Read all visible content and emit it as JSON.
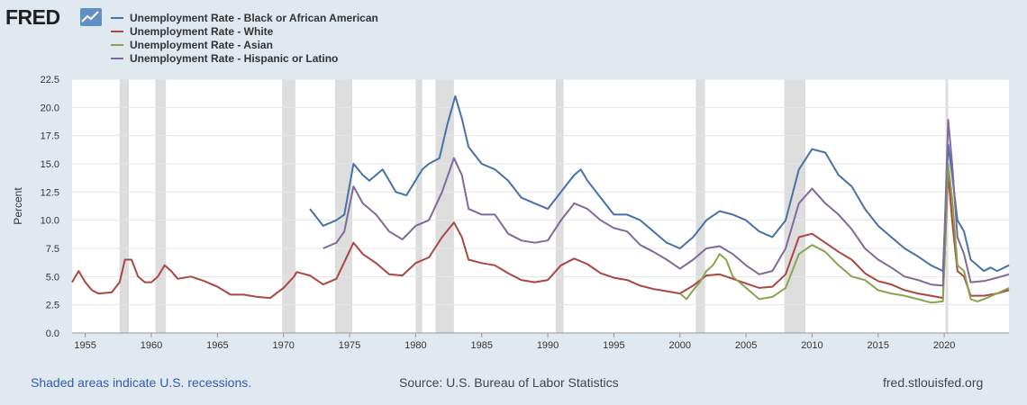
{
  "header": {
    "logo_text": "FRED",
    "logo_icon": "line-chart-icon"
  },
  "footer": {
    "recessions_note": "Shaded areas indicate U.S. recessions.",
    "source": "Source: U.S. Bureau of Labor Statistics",
    "site": "fred.stlouisfed.org"
  },
  "colors": {
    "background": "#e1e9f0",
    "plot_bg": "#ffffff",
    "recession": "#dddddd",
    "black": "#4572a7",
    "white": "#aa4643",
    "asian": "#89a54e",
    "hispanic": "#80699b"
  },
  "chart_data": {
    "type": "line",
    "xlabel": "",
    "ylabel": "Percent",
    "xlim": [
      1954.0,
      2024.9
    ],
    "ylim": [
      0,
      22.5
    ],
    "yticks": [
      "0.0",
      "2.5",
      "5.0",
      "7.5",
      "10.0",
      "12.5",
      "15.0",
      "17.5",
      "20.0",
      "22.5"
    ],
    "xticks": [
      "1955",
      "1960",
      "1965",
      "1970",
      "1975",
      "1980",
      "1985",
      "1990",
      "1995",
      "2000",
      "2005",
      "2010",
      "2015",
      "2020"
    ],
    "recessions": [
      [
        1957.6,
        1958.3
      ],
      [
        1960.3,
        1961.1
      ],
      [
        1969.9,
        1970.9
      ],
      [
        1973.9,
        1975.2
      ],
      [
        1980.0,
        1980.5
      ],
      [
        1981.5,
        1982.9
      ],
      [
        1990.6,
        1991.2
      ],
      [
        2001.2,
        2001.9
      ],
      [
        2007.9,
        2009.5
      ],
      [
        2020.1,
        2020.3
      ]
    ],
    "series": [
      {
        "name": "Unemployment Rate - Black or African American",
        "color": "#4572a7",
        "points": [
          [
            1972.0,
            11.0
          ],
          [
            1973.0,
            9.5
          ],
          [
            1974.0,
            10.0
          ],
          [
            1974.6,
            10.5
          ],
          [
            1975.3,
            15.0
          ],
          [
            1976.0,
            14.0
          ],
          [
            1976.5,
            13.5
          ],
          [
            1977.5,
            14.5
          ],
          [
            1978.5,
            12.5
          ],
          [
            1979.3,
            12.2
          ],
          [
            1980.5,
            14.5
          ],
          [
            1981.0,
            15.0
          ],
          [
            1981.8,
            15.5
          ],
          [
            1982.4,
            18.5
          ],
          [
            1983.0,
            21.0
          ],
          [
            1983.5,
            19.0
          ],
          [
            1984.0,
            16.5
          ],
          [
            1985.0,
            15.0
          ],
          [
            1986.0,
            14.5
          ],
          [
            1987.0,
            13.5
          ],
          [
            1988.0,
            12.0
          ],
          [
            1989.0,
            11.5
          ],
          [
            1990.0,
            11.0
          ],
          [
            1991.0,
            12.5
          ],
          [
            1992.0,
            14.0
          ],
          [
            1992.5,
            14.5
          ],
          [
            1993.0,
            13.5
          ],
          [
            1994.0,
            12.0
          ],
          [
            1995.0,
            10.5
          ],
          [
            1996.0,
            10.5
          ],
          [
            1997.0,
            10.0
          ],
          [
            1998.0,
            9.0
          ],
          [
            1999.0,
            8.0
          ],
          [
            2000.0,
            7.5
          ],
          [
            2001.0,
            8.5
          ],
          [
            2002.0,
            10.0
          ],
          [
            2003.0,
            10.8
          ],
          [
            2004.0,
            10.5
          ],
          [
            2005.0,
            10.0
          ],
          [
            2006.0,
            9.0
          ],
          [
            2007.0,
            8.5
          ],
          [
            2008.0,
            10.0
          ],
          [
            2009.0,
            14.5
          ],
          [
            2010.0,
            16.3
          ],
          [
            2011.0,
            16.0
          ],
          [
            2012.0,
            14.0
          ],
          [
            2013.0,
            13.0
          ],
          [
            2014.0,
            11.0
          ],
          [
            2015.0,
            9.5
          ],
          [
            2016.0,
            8.5
          ],
          [
            2017.0,
            7.5
          ],
          [
            2018.0,
            6.8
          ],
          [
            2019.0,
            6.0
          ],
          [
            2019.9,
            5.5
          ],
          [
            2020.3,
            16.7
          ],
          [
            2020.6,
            14.0
          ],
          [
            2021.0,
            10.0
          ],
          [
            2021.5,
            9.0
          ],
          [
            2022.0,
            6.5
          ],
          [
            2022.5,
            6.0
          ],
          [
            2023.0,
            5.5
          ],
          [
            2023.5,
            5.8
          ],
          [
            2024.0,
            5.5
          ],
          [
            2024.9,
            6.0
          ]
        ]
      },
      {
        "name": "Unemployment Rate - White",
        "color": "#aa4643",
        "points": [
          [
            1954.0,
            4.5
          ],
          [
            1954.5,
            5.5
          ],
          [
            1955.0,
            4.5
          ],
          [
            1955.5,
            3.8
          ],
          [
            1956.0,
            3.5
          ],
          [
            1957.0,
            3.6
          ],
          [
            1957.6,
            4.5
          ],
          [
            1958.0,
            6.5
          ],
          [
            1958.5,
            6.5
          ],
          [
            1959.0,
            5.0
          ],
          [
            1959.5,
            4.5
          ],
          [
            1960.0,
            4.5
          ],
          [
            1960.5,
            5.0
          ],
          [
            1961.0,
            6.0
          ],
          [
            1961.5,
            5.5
          ],
          [
            1962.0,
            4.8
          ],
          [
            1963.0,
            5.0
          ],
          [
            1964.0,
            4.6
          ],
          [
            1965.0,
            4.1
          ],
          [
            1966.0,
            3.4
          ],
          [
            1967.0,
            3.4
          ],
          [
            1968.0,
            3.2
          ],
          [
            1969.0,
            3.1
          ],
          [
            1970.0,
            4.0
          ],
          [
            1970.8,
            5.0
          ],
          [
            1971.0,
            5.4
          ],
          [
            1972.0,
            5.1
          ],
          [
            1973.0,
            4.3
          ],
          [
            1974.0,
            4.8
          ],
          [
            1975.3,
            8.0
          ],
          [
            1976.0,
            7.0
          ],
          [
            1977.0,
            6.2
          ],
          [
            1978.0,
            5.2
          ],
          [
            1979.0,
            5.1
          ],
          [
            1980.0,
            6.2
          ],
          [
            1981.0,
            6.7
          ],
          [
            1982.0,
            8.5
          ],
          [
            1982.9,
            9.8
          ],
          [
            1983.5,
            8.5
          ],
          [
            1984.0,
            6.5
          ],
          [
            1985.0,
            6.2
          ],
          [
            1986.0,
            6.0
          ],
          [
            1987.0,
            5.3
          ],
          [
            1988.0,
            4.7
          ],
          [
            1989.0,
            4.5
          ],
          [
            1990.0,
            4.7
          ],
          [
            1991.0,
            6.0
          ],
          [
            1992.0,
            6.6
          ],
          [
            1993.0,
            6.1
          ],
          [
            1994.0,
            5.3
          ],
          [
            1995.0,
            4.9
          ],
          [
            1996.0,
            4.7
          ],
          [
            1997.0,
            4.2
          ],
          [
            1998.0,
            3.9
          ],
          [
            1999.0,
            3.7
          ],
          [
            2000.0,
            3.5
          ],
          [
            2001.0,
            4.2
          ],
          [
            2002.0,
            5.1
          ],
          [
            2003.0,
            5.2
          ],
          [
            2004.0,
            4.8
          ],
          [
            2005.0,
            4.4
          ],
          [
            2006.0,
            4.0
          ],
          [
            2007.0,
            4.1
          ],
          [
            2008.0,
            5.2
          ],
          [
            2009.0,
            8.5
          ],
          [
            2010.0,
            8.8
          ],
          [
            2011.0,
            8.0
          ],
          [
            2012.0,
            7.2
          ],
          [
            2013.0,
            6.5
          ],
          [
            2014.0,
            5.3
          ],
          [
            2015.0,
            4.6
          ],
          [
            2016.0,
            4.3
          ],
          [
            2017.0,
            3.8
          ],
          [
            2018.0,
            3.5
          ],
          [
            2019.0,
            3.3
          ],
          [
            2019.9,
            3.1
          ],
          [
            2020.3,
            14.2
          ],
          [
            2020.6,
            10.0
          ],
          [
            2021.0,
            5.5
          ],
          [
            2021.5,
            5.0
          ],
          [
            2022.0,
            3.3
          ],
          [
            2023.0,
            3.3
          ],
          [
            2024.0,
            3.5
          ],
          [
            2024.9,
            3.8
          ]
        ]
      },
      {
        "name": "Unemployment Rate - Asian",
        "color": "#89a54e",
        "points": [
          [
            2000.0,
            3.5
          ],
          [
            2000.5,
            3.0
          ],
          [
            2001.0,
            3.8
          ],
          [
            2001.5,
            4.5
          ],
          [
            2002.0,
            5.5
          ],
          [
            2002.5,
            6.0
          ],
          [
            2003.0,
            7.0
          ],
          [
            2003.5,
            6.5
          ],
          [
            2004.0,
            5.0
          ],
          [
            2005.0,
            4.0
          ],
          [
            2006.0,
            3.0
          ],
          [
            2007.0,
            3.2
          ],
          [
            2008.0,
            4.0
          ],
          [
            2009.0,
            7.0
          ],
          [
            2010.0,
            7.8
          ],
          [
            2011.0,
            7.2
          ],
          [
            2012.0,
            6.0
          ],
          [
            2013.0,
            5.0
          ],
          [
            2014.0,
            4.7
          ],
          [
            2015.0,
            3.8
          ],
          [
            2016.0,
            3.5
          ],
          [
            2017.0,
            3.3
          ],
          [
            2018.0,
            3.0
          ],
          [
            2019.0,
            2.7
          ],
          [
            2019.9,
            2.8
          ],
          [
            2020.3,
            15.0
          ],
          [
            2020.6,
            12.0
          ],
          [
            2021.0,
            6.0
          ],
          [
            2021.5,
            5.5
          ],
          [
            2022.0,
            3.0
          ],
          [
            2022.5,
            2.8
          ],
          [
            2023.0,
            3.0
          ],
          [
            2024.0,
            3.5
          ],
          [
            2024.9,
            4.0
          ]
        ]
      },
      {
        "name": "Unemployment Rate - Hispanic or Latino",
        "color": "#80699b",
        "points": [
          [
            1973.0,
            7.5
          ],
          [
            1974.0,
            8.0
          ],
          [
            1974.6,
            9.0
          ],
          [
            1975.3,
            13.0
          ],
          [
            1976.0,
            11.5
          ],
          [
            1977.0,
            10.5
          ],
          [
            1978.0,
            9.0
          ],
          [
            1979.0,
            8.3
          ],
          [
            1980.0,
            9.5
          ],
          [
            1981.0,
            10.0
          ],
          [
            1982.0,
            12.5
          ],
          [
            1982.9,
            15.5
          ],
          [
            1983.5,
            14.0
          ],
          [
            1984.0,
            11.0
          ],
          [
            1985.0,
            10.5
          ],
          [
            1986.0,
            10.5
          ],
          [
            1987.0,
            8.8
          ],
          [
            1988.0,
            8.2
          ],
          [
            1989.0,
            8.0
          ],
          [
            1990.0,
            8.2
          ],
          [
            1991.0,
            10.0
          ],
          [
            1992.0,
            11.5
          ],
          [
            1993.0,
            11.0
          ],
          [
            1994.0,
            10.0
          ],
          [
            1995.0,
            9.3
          ],
          [
            1996.0,
            9.0
          ],
          [
            1997.0,
            7.8
          ],
          [
            1998.0,
            7.2
          ],
          [
            1999.0,
            6.5
          ],
          [
            2000.0,
            5.7
          ],
          [
            2001.0,
            6.5
          ],
          [
            2002.0,
            7.5
          ],
          [
            2003.0,
            7.7
          ],
          [
            2004.0,
            7.0
          ],
          [
            2005.0,
            6.0
          ],
          [
            2006.0,
            5.2
          ],
          [
            2007.0,
            5.5
          ],
          [
            2008.0,
            7.5
          ],
          [
            2009.0,
            11.5
          ],
          [
            2010.0,
            12.8
          ],
          [
            2011.0,
            11.5
          ],
          [
            2012.0,
            10.5
          ],
          [
            2013.0,
            9.2
          ],
          [
            2014.0,
            7.5
          ],
          [
            2015.0,
            6.5
          ],
          [
            2016.0,
            5.8
          ],
          [
            2017.0,
            5.0
          ],
          [
            2018.0,
            4.7
          ],
          [
            2019.0,
            4.3
          ],
          [
            2019.9,
            4.2
          ],
          [
            2020.3,
            18.9
          ],
          [
            2020.6,
            15.0
          ],
          [
            2021.0,
            8.5
          ],
          [
            2021.5,
            7.0
          ],
          [
            2022.0,
            4.5
          ],
          [
            2023.0,
            4.6
          ],
          [
            2024.0,
            4.9
          ],
          [
            2024.9,
            5.2
          ]
        ]
      }
    ]
  }
}
